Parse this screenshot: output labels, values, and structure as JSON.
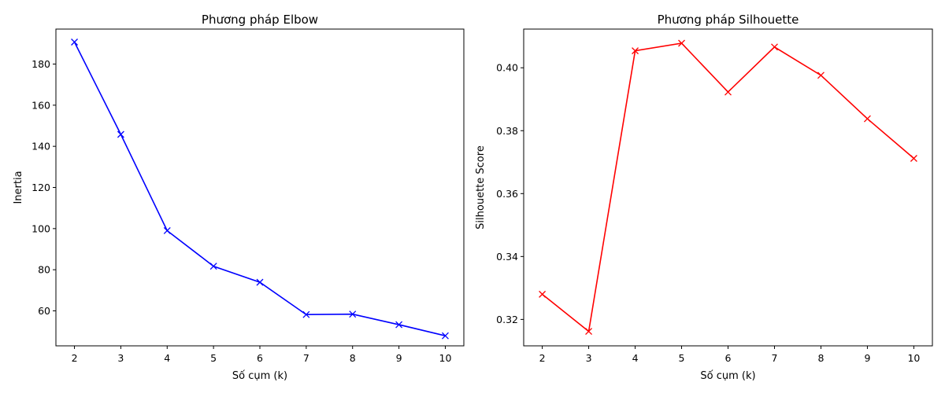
{
  "chart_data": [
    {
      "type": "line",
      "title": "Phương pháp Elbow",
      "xlabel": "Số cụm (k)",
      "ylabel": "Inertia",
      "x": [
        2,
        3,
        4,
        5,
        6,
        7,
        8,
        9,
        10
      ],
      "xlim": [
        1.6,
        10.4
      ],
      "ylim": [
        43,
        197
      ],
      "xticks": [
        2,
        3,
        4,
        5,
        6,
        7,
        8,
        9,
        10
      ],
      "yticks": [
        60,
        80,
        100,
        120,
        140,
        160,
        180
      ],
      "ytick_decimals": 0,
      "grid": false,
      "series": [
        {
          "values": [
            190.7,
            145.8,
            99.0,
            81.7,
            73.9,
            58.2,
            58.4,
            53.3,
            47.9
          ],
          "color": "#0000ff",
          "marker": "x"
        }
      ]
    },
    {
      "type": "line",
      "title": "Phương pháp Silhouette",
      "xlabel": "Số cụm (k)",
      "ylabel": "Silhouette Score",
      "x": [
        2,
        3,
        4,
        5,
        6,
        7,
        8,
        9,
        10
      ],
      "xlim": [
        1.6,
        10.4
      ],
      "ylim": [
        0.3116,
        0.4123
      ],
      "xticks": [
        2,
        3,
        4,
        5,
        6,
        7,
        8,
        9,
        10
      ],
      "yticks": [
        0.32,
        0.34,
        0.36,
        0.38,
        0.4
      ],
      "ytick_decimals": 2,
      "grid": false,
      "series": [
        {
          "values": [
            0.328,
            0.3162,
            0.4054,
            0.4078,
            0.3923,
            0.4066,
            0.3976,
            0.3838,
            0.3712
          ],
          "color": "#ff0000",
          "marker": "x"
        }
      ]
    }
  ]
}
